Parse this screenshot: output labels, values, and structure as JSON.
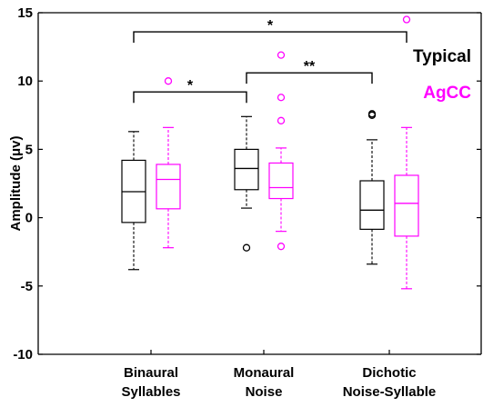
{
  "chart_data": {
    "type": "box",
    "ylabel": "Amplitude (μv)",
    "ylim": [
      -10,
      15
    ],
    "yticks": [
      -10,
      -5,
      0,
      5,
      10,
      15
    ],
    "grid": false,
    "legend_position": "top-right",
    "categories": [
      {
        "lines": [
          "Binaural",
          "Syllables"
        ]
      },
      {
        "lines": [
          "Monaural",
          "Noise"
        ]
      },
      {
        "lines": [
          "Dichotic",
          "Noise-Syllable"
        ]
      }
    ],
    "series": [
      {
        "name": "Typical",
        "color": "#000000",
        "boxes": [
          {
            "whisker_low": -3.8,
            "q1": -0.35,
            "median": 1.9,
            "q3": 4.2,
            "whisker_high": 6.3,
            "outliers": []
          },
          {
            "whisker_low": 0.7,
            "q1": 2.05,
            "median": 3.6,
            "q3": 5.0,
            "whisker_high": 7.4,
            "outliers": [
              -2.2
            ]
          },
          {
            "whisker_low": -3.4,
            "q1": -0.85,
            "median": 0.55,
            "q3": 2.7,
            "whisker_high": 5.7,
            "outliers": [
              7.5,
              7.6
            ]
          }
        ]
      },
      {
        "name": "AgCC",
        "color": "#ff00ff",
        "boxes": [
          {
            "whisker_low": -2.2,
            "q1": 0.65,
            "median": 2.8,
            "q3": 3.9,
            "whisker_high": 6.6,
            "outliers": [
              10.0
            ]
          },
          {
            "whisker_low": -1.0,
            "q1": 1.4,
            "median": 2.2,
            "q3": 4.0,
            "whisker_high": 5.1,
            "outliers": [
              11.9,
              8.8,
              7.1,
              -2.1
            ]
          },
          {
            "whisker_low": -5.2,
            "q1": -1.35,
            "median": 1.05,
            "q3": 3.1,
            "whisker_high": 6.6,
            "outliers": [
              14.5
            ]
          }
        ]
      }
    ],
    "significance": [
      {
        "from_group": 0,
        "from_series": 0,
        "to_group": 1,
        "to_series": 0,
        "y": 9.2,
        "label": "*"
      },
      {
        "from_group": 1,
        "from_series": 0,
        "to_group": 2,
        "to_series": 0,
        "y": 10.6,
        "label": "**"
      },
      {
        "from_group": 0,
        "from_series": 0,
        "to_group": 2,
        "to_series": 1,
        "y": 13.6,
        "label": "*"
      }
    ]
  }
}
